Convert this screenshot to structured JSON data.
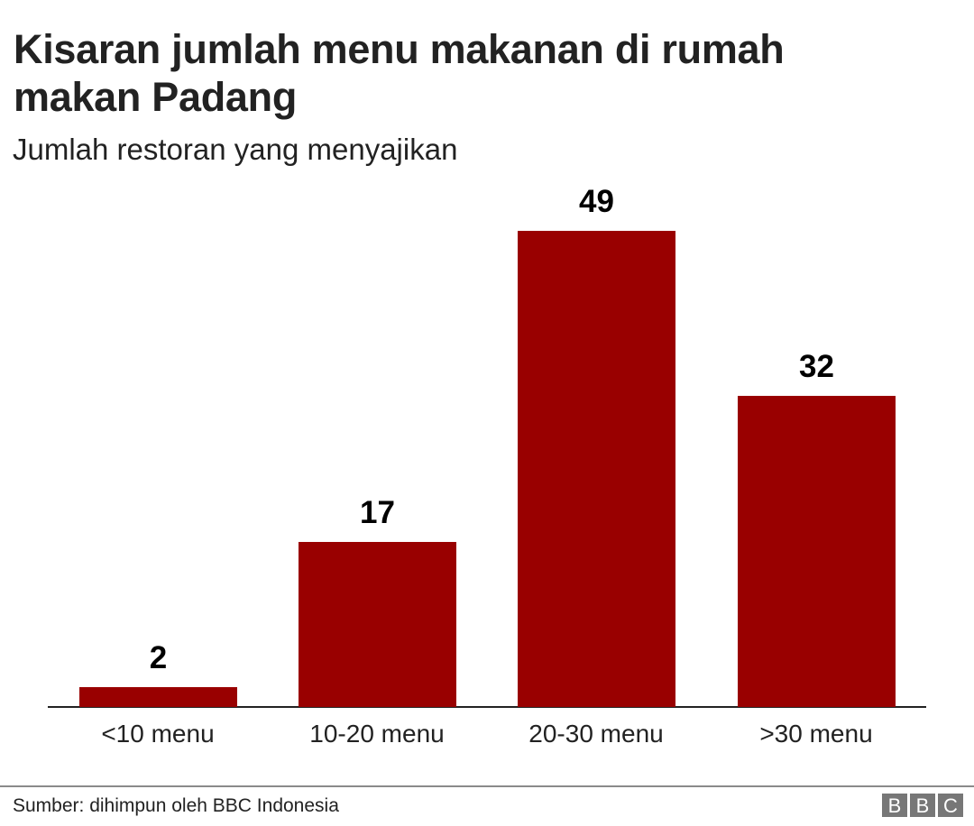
{
  "header": {
    "title": "Kisaran jumlah menu makanan di rumah makan Padang",
    "subtitle": "Jumlah restoran yang menyajikan"
  },
  "footer": {
    "source": "Sumber: dihimpun oleh BBC Indonesia",
    "logo_letters": [
      "B",
      "B",
      "C"
    ]
  },
  "colors": {
    "bar": "#990000",
    "axis": "#222222",
    "footer_line": "#8a8a8a",
    "logo_bg": "#777777"
  },
  "bars": [
    {
      "label": "<10 menu",
      "value": "2"
    },
    {
      "label": "10-20 menu",
      "value": "17"
    },
    {
      "label": "20-30 menu",
      "value": "49"
    },
    {
      "label": ">30 menu",
      "value": "32"
    }
  ],
  "chart_data": {
    "type": "bar",
    "title": "Kisaran jumlah menu makanan di rumah makan Padang",
    "subtitle": "Jumlah restoran yang menyajikan",
    "categories": [
      "<10 menu",
      "10-20 menu",
      "20-30 menu",
      ">30 menu"
    ],
    "values": [
      2,
      17,
      49,
      32
    ],
    "xlabel": "",
    "ylabel": "Jumlah restoran yang menyajikan",
    "ylim": [
      0,
      49
    ],
    "grid": false,
    "legend": null,
    "data_labels": true,
    "bar_color": "#990000",
    "source": "Sumber: dihimpun oleh BBC Indonesia"
  }
}
